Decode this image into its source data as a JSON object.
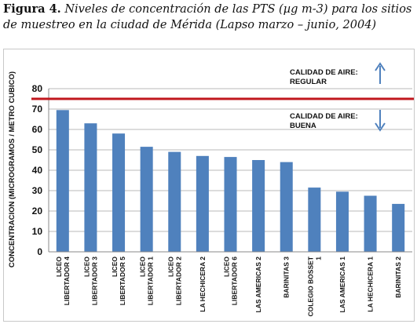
{
  "caption": {
    "label": "Figura 4.",
    "text": "Niveles de concentración de las PTS (µg m-3) para los sitios de muestreo en la ciudad de Mérida (Lapso marzo – junio, 2004)"
  },
  "chart_data": {
    "type": "bar",
    "categories": [
      [
        "LICEO",
        "LIBERTADOR 4"
      ],
      [
        "LICEO",
        "LIBERTADOR 3"
      ],
      [
        "LICEO",
        "LIBERTADOR 5"
      ],
      [
        "LICEO",
        "LIBERTADOR 1"
      ],
      [
        "LICEO",
        "LIBERTADOR 2"
      ],
      [
        "LA HECHICERA 2"
      ],
      [
        "LICEO",
        "LIBERTADOR 6"
      ],
      [
        "LAS AMERICAS 2"
      ],
      [
        "BARINITAS 3"
      ],
      [
        "COLEGIO BOSSET",
        "1"
      ],
      [
        "LAS AMERICAS 1"
      ],
      [
        "LA HECHICERA 1"
      ],
      [
        "BARINITAS 2"
      ]
    ],
    "values": [
      69.5,
      63,
      58,
      51.5,
      49,
      47,
      46.5,
      45,
      44,
      31.5,
      29.5,
      27.5,
      23.5
    ],
    "ylabel": "CONCENTRACION (MICROGRAMOS / METRO CUBICO)",
    "ylim": [
      0,
      80
    ],
    "yticks": [
      0,
      10,
      20,
      30,
      40,
      50,
      60,
      70,
      80
    ],
    "grid": true,
    "threshold": 75,
    "annotations": {
      "upper": [
        "CALIDAD DE AIRE:",
        "REGULAR"
      ],
      "lower": [
        "CALIDAD DE AIRE:",
        "BUENA"
      ]
    },
    "colors": {
      "bar": "#4f81bd",
      "threshold": "#c0171d",
      "arrow": "#4f81bd",
      "grid": "#b8b8b8"
    }
  }
}
